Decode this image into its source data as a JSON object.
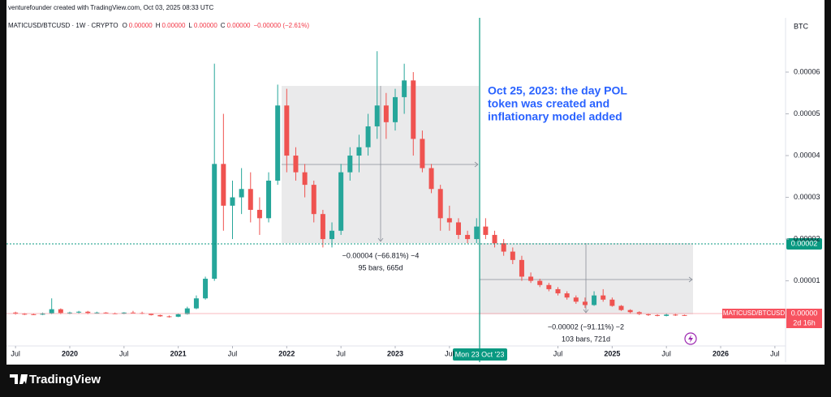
{
  "header": "venturefounder created with TradingView.com, Oct 03, 2025 08:33 UTC",
  "legend": {
    "symbol": "MATICUSD/BTCUSD · 1W · CRYPTO",
    "ohlc": [
      {
        "label": "O",
        "value": "0.00000"
      },
      {
        "label": "H",
        "value": "0.00000"
      },
      {
        "label": "L",
        "value": "0.00000"
      },
      {
        "label": "C",
        "value": "0.00000"
      }
    ],
    "change": "−0.00000 (−2.61%)"
  },
  "currency": "BTC",
  "annotation": [
    "Oct 25, 2023: the day POL",
    "token was created and",
    "inflationary model added"
  ],
  "measures": [
    [
      "−0.00004 (−66.81%) −4",
      "95 bars, 665d"
    ],
    [
      "−0.00002 (−91.11%) −2",
      "103 bars, 721d"
    ]
  ],
  "crosshair": {
    "price": "0.00002",
    "date": "Mon 23 Oct '23"
  },
  "last_price": {
    "symbol": "MATICUSD/BTCUSD",
    "price": "0.00000",
    "countdown": "2d 16h"
  },
  "logo": "TradingView",
  "chart_data": {
    "type": "candlestick",
    "x": [
      "2019-07",
      "2019-08",
      "2019-09",
      "2019-10",
      "2019-11",
      "2019-12",
      "2020-01",
      "2020-02",
      "2020-03",
      "2020-04",
      "2020-05",
      "2020-06",
      "2020-07",
      "2020-08",
      "2020-09",
      "2020-10",
      "2020-11",
      "2020-12",
      "2021-01",
      "2021-02",
      "2021-03",
      "2021-04",
      "2021-05",
      "2021-06",
      "2021-07",
      "2021-08",
      "2021-09",
      "2021-10",
      "2021-11",
      "2021-12",
      "2022-01",
      "2022-02",
      "2022-03",
      "2022-04",
      "2022-05",
      "2022-06",
      "2022-07",
      "2022-08",
      "2022-09",
      "2022-10",
      "2022-11",
      "2022-12",
      "2023-01",
      "2023-02",
      "2023-03",
      "2023-04",
      "2023-05",
      "2023-06",
      "2023-07",
      "2023-08",
      "2023-09",
      "2023-10",
      "2023-11",
      "2023-12",
      "2024-01",
      "2024-02",
      "2024-03",
      "2024-04",
      "2024-05",
      "2024-06",
      "2024-07",
      "2024-08",
      "2024-09",
      "2024-10",
      "2024-11",
      "2024-12",
      "2025-01",
      "2025-02",
      "2025-03",
      "2025-04",
      "2025-05",
      "2025-06",
      "2025-07",
      "2025-08",
      "2025-09"
    ],
    "open": [
      2.4e-06,
      2.1e-06,
      2e-06,
      1.9e-06,
      2.2e-06,
      3.2e-06,
      2.3e-06,
      2.4e-06,
      2.6e-06,
      2.3e-06,
      2.4e-06,
      2.2e-06,
      2.1e-06,
      2.4e-06,
      2.3e-06,
      2.1e-06,
      1.8e-06,
      1.5e-06,
      1.4e-06,
      2e-06,
      3.4e-06,
      5.8e-06,
      1.05e-05,
      3.8e-05,
      2.8e-05,
      3e-05,
      3.2e-05,
      2.7e-05,
      2.5e-05,
      3.4e-05,
      5.2e-05,
      4e-05,
      3.6e-05,
      3.3e-05,
      2.6e-05,
      2e-05,
      2.2e-05,
      3.6e-05,
      4e-05,
      4.2e-05,
      4.7e-05,
      5.2e-05,
      4.8e-05,
      5.4e-05,
      5.8e-05,
      4.4e-05,
      3.7e-05,
      3.2e-05,
      2.5e-05,
      2.4e-05,
      2.1e-05,
      2e-05,
      2.3e-05,
      2.1e-05,
      1.9e-05,
      1.7e-05,
      1.5e-05,
      1.1e-05,
      1e-05,
      9e-06,
      8e-06,
      7e-06,
      6e-06,
      5e-06,
      4.2e-06,
      6.5e-06,
      5.5e-06,
      4e-06,
      3e-06,
      2.5e-06,
      2e-06,
      1.8e-06,
      1.6e-06,
      1.9e-06,
      1.8e-06
    ],
    "high": [
      2.6e-06,
      2.3e-06,
      2.2e-06,
      2.4e-06,
      5.8e-06,
      3.4e-06,
      2.6e-06,
      2.8e-06,
      2.8e-06,
      2.6e-06,
      2.5e-06,
      2.4e-06,
      2.5e-06,
      2.8e-06,
      2.6e-06,
      2.2e-06,
      1.9e-06,
      1.7e-06,
      2.2e-06,
      3.8e-06,
      6.5e-06,
      1.1e-05,
      6.2e-05,
      5e-05,
      3.4e-05,
      3.7e-05,
      3.6e-05,
      3e-05,
      3.6e-05,
      5.7e-05,
      5.6e-05,
      4.2e-05,
      3.8e-05,
      3.4e-05,
      2.7e-05,
      2.4e-05,
      3.8e-05,
      4.2e-05,
      4.5e-05,
      5e-05,
      6.5e-05,
      5.5e-05,
      5.6e-05,
      6.2e-05,
      6e-05,
      4.6e-05,
      3.8e-05,
      3.3e-05,
      2.8e-05,
      2.5e-05,
      2.2e-05,
      2.5e-05,
      2.5e-05,
      2.2e-05,
      2e-05,
      1.8e-05,
      1.6e-05,
      1.2e-05,
      1.05e-05,
      9.5e-06,
      8.5e-06,
      7.5e-06,
      6.5e-06,
      6e-06,
      7.5e-06,
      8e-06,
      6e-06,
      4.2e-06,
      3.2e-06,
      2.7e-06,
      2.2e-06,
      2e-06,
      2.2e-06,
      2.1e-06,
      1.9e-06
    ],
    "low": [
      1.9e-06,
      1.8e-06,
      1.8e-06,
      1.8e-06,
      2e-06,
      2e-06,
      2e-06,
      2.1e-06,
      2e-06,
      2.1e-06,
      2.1e-06,
      2e-06,
      2e-06,
      2.2e-06,
      2e-06,
      1.7e-06,
      1.4e-06,
      1.2e-06,
      1.3e-06,
      1.9e-06,
      3.2e-06,
      5.5e-06,
      1e-05,
      2.2e-05,
      2e-05,
      2.6e-05,
      2.4e-05,
      2.1e-05,
      2.4e-05,
      3.3e-05,
      3.6e-05,
      3.4e-05,
      3e-05,
      2.4e-05,
      1.8e-05,
      1.8e-05,
      2.1e-05,
      3.4e-05,
      3.6e-05,
      4e-05,
      4.4e-05,
      4.4e-05,
      4.6e-05,
      5e-05,
      4e-05,
      3.6e-05,
      3.1e-05,
      2.2e-05,
      2.2e-05,
      2e-05,
      1.9e-05,
      1.9e-05,
      2e-05,
      1.8e-05,
      1.6e-05,
      1.4e-05,
      1e-05,
      9.5e-06,
      8.5e-06,
      7.5e-06,
      6.5e-06,
      5.5e-06,
      4.5e-06,
      3.5e-06,
      4e-06,
      5e-06,
      3.8e-06,
      2.8e-06,
      2.2e-06,
      1.8e-06,
      1.6e-06,
      1.5e-06,
      1.5e-06,
      1.6e-06,
      1.6e-06
    ],
    "close": [
      2.1e-06,
      2e-06,
      1.9e-06,
      2.2e-06,
      3.2e-06,
      2.3e-06,
      2.4e-06,
      2.6e-06,
      2.3e-06,
      2.4e-06,
      2.2e-06,
      2.1e-06,
      2.4e-06,
      2.3e-06,
      2.1e-06,
      1.8e-06,
      1.5e-06,
      1.4e-06,
      2e-06,
      3.4e-06,
      5.8e-06,
      1.05e-05,
      3.8e-05,
      2.8e-05,
      3e-05,
      3.2e-05,
      2.7e-05,
      2.5e-05,
      3.4e-05,
      5.2e-05,
      4e-05,
      3.6e-05,
      3.3e-05,
      2.6e-05,
      2e-05,
      2.2e-05,
      3.6e-05,
      4e-05,
      4.2e-05,
      4.7e-05,
      5.2e-05,
      4.8e-05,
      5.4e-05,
      5.8e-05,
      4.4e-05,
      3.7e-05,
      3.2e-05,
      2.5e-05,
      2.4e-05,
      2.1e-05,
      2e-05,
      2.3e-05,
      2.1e-05,
      1.9e-05,
      1.7e-05,
      1.5e-05,
      1.1e-05,
      1e-05,
      9e-06,
      8e-06,
      7e-06,
      6e-06,
      5e-06,
      4.2e-06,
      6.5e-06,
      5.5e-06,
      4e-06,
      3e-06,
      2.5e-06,
      2e-06,
      1.8e-06,
      1.6e-06,
      1.9e-06,
      1.8e-06,
      1.7e-06
    ],
    "up_color": "#26a69a",
    "down_color": "#ef5350",
    "xlim": [
      "2019-06",
      "2026-08"
    ],
    "xticks": [
      {
        "value": "2019-07",
        "label": "Jul"
      },
      {
        "value": "2020-01",
        "label": "2020"
      },
      {
        "value": "2020-07",
        "label": "Jul"
      },
      {
        "value": "2021-01",
        "label": "2021"
      },
      {
        "value": "2021-07",
        "label": "Jul"
      },
      {
        "value": "2022-01",
        "label": "2022"
      },
      {
        "value": "2022-07",
        "label": "Jul"
      },
      {
        "value": "2023-01",
        "label": "2023"
      },
      {
        "value": "2023-07",
        "label": "Jul"
      },
      {
        "value": "2024-07",
        "label": "Jul"
      },
      {
        "value": "2025-01",
        "label": "2025"
      },
      {
        "value": "2025-07",
        "label": "Jul"
      },
      {
        "value": "2026-01",
        "label": "2026"
      },
      {
        "value": "2026-07",
        "label": "Jul"
      }
    ],
    "ylim": [
      -5.6e-06,
      7.3e-05
    ],
    "yticks": [
      1e-05,
      2e-05,
      3e-05,
      4e-05,
      5e-05,
      6e-05
    ],
    "grid": false
  }
}
